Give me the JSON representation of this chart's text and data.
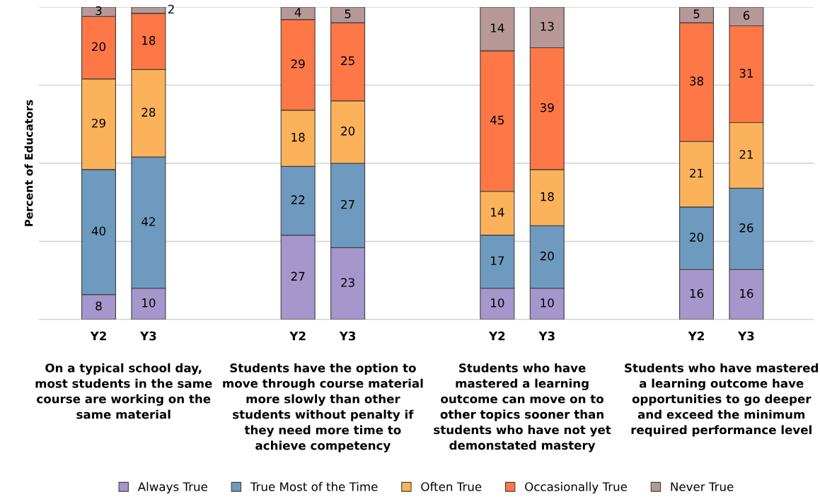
{
  "chart_data": {
    "type": "bar",
    "stacked": true,
    "ylabel": "Percent of Educators",
    "categories": [
      "Y2",
      "Y3",
      null,
      null,
      "Y2",
      "Y3",
      null,
      null,
      "Y2",
      "Y3",
      null,
      null,
      "Y2",
      "Y3"
    ],
    "series": [
      {
        "name": "Always True",
        "color": "#a597cc",
        "values": [
          8,
          10,
          null,
          null,
          27,
          23,
          null,
          null,
          10,
          10,
          null,
          null,
          16,
          16
        ]
      },
      {
        "name": "True Most of the Time",
        "color": "#6f9abf",
        "values": [
          40,
          42,
          null,
          null,
          22,
          27,
          null,
          null,
          17,
          20,
          null,
          null,
          20,
          26
        ]
      },
      {
        "name": "Often True",
        "color": "#fbb25a",
        "values": [
          29,
          28,
          null,
          null,
          18,
          20,
          null,
          null,
          14,
          18,
          null,
          null,
          21,
          21
        ]
      },
      {
        "name": "Occasionally True",
        "color": "#fd7747",
        "values": [
          20,
          18,
          null,
          null,
          29,
          25,
          null,
          null,
          45,
          39,
          null,
          null,
          38,
          31
        ]
      },
      {
        "name": "Never True",
        "color": "#b79898",
        "values": [
          3,
          2,
          null,
          null,
          4,
          5,
          null,
          null,
          14,
          13,
          null,
          null,
          5,
          6
        ]
      }
    ],
    "ylim": [
      0,
      100
    ],
    "yticks": [
      {
        "value": 0,
        "label": null
      },
      {
        "value": 25,
        "label": null
      },
      {
        "value": 50,
        "label": null
      },
      {
        "value": 75,
        "label": null
      },
      {
        "value": 100,
        "label": null
      }
    ],
    "grid": "y",
    "tick_labels": "x",
    "data_labels": true,
    "legend": "bottom",
    "annotations": [
      "On a typical school day,\nmost students in the same\ncourse are working on the\nsame material",
      "Students have the option to\nmove through course material\nmore slowly than other\nstudents without penalty if\nthey need more time to\nachieve competency",
      "Students who have\nmastered a learning\noutcome can move on to\nother topics sooner than\nstudents who have not yet\ndemonstated mastery",
      "Students who have mastered\na learning outcome have\nopportunities to go deeper\nand exceed the minimum\nrequired performance level"
    ]
  }
}
